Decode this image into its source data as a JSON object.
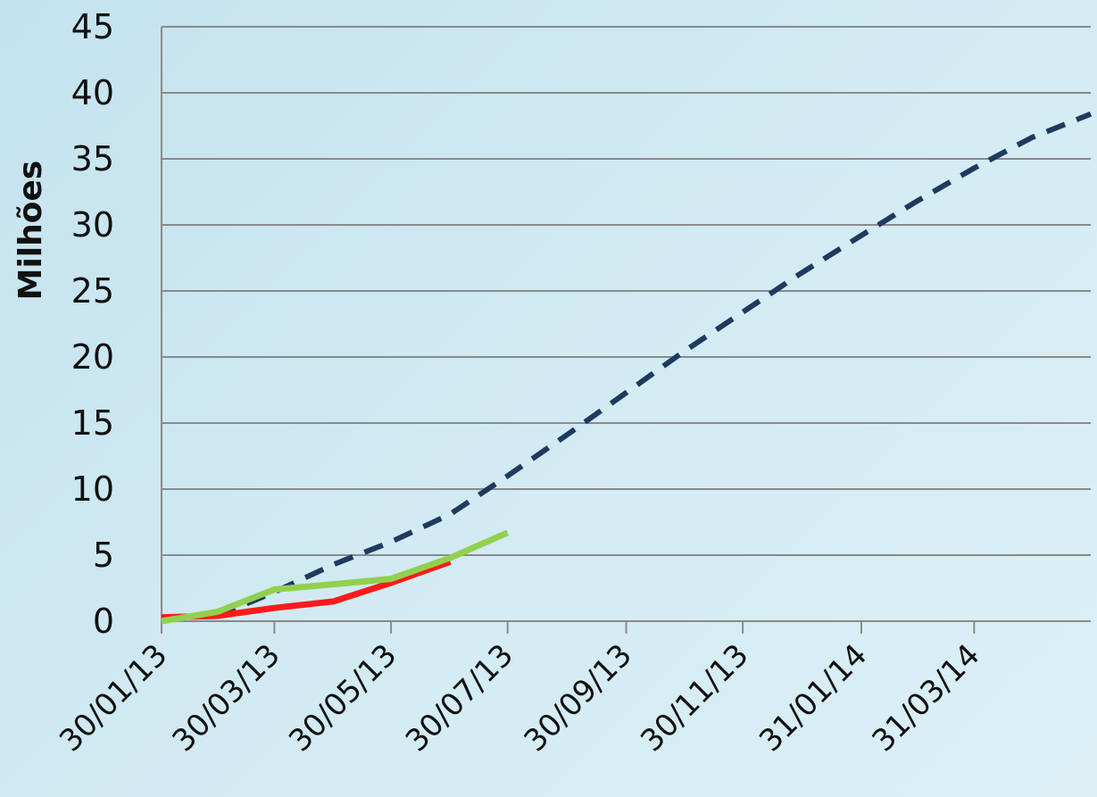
{
  "chart_data": {
    "type": "line",
    "title": "",
    "xlabel": "",
    "ylabel": "Milhões",
    "ylim": [
      0,
      45
    ],
    "yticks": [
      0,
      5,
      10,
      15,
      20,
      25,
      30,
      35,
      40,
      45
    ],
    "xlim": [
      "2013-01-30",
      "2014-05-31"
    ],
    "xtick_labels": [
      "30/01/13",
      "30/03/13",
      "30/05/13",
      "30/07/13",
      "30/09/13",
      "30/11/13",
      "31/01/14",
      "31/03/14"
    ],
    "xtick_dates": [
      "2013-01-30",
      "2013-03-30",
      "2013-05-30",
      "2013-07-30",
      "2013-09-30",
      "2013-11-30",
      "2014-01-31",
      "2014-03-31"
    ],
    "grid": {
      "horizontal": true,
      "vertical": false
    },
    "legend": "none",
    "series": [
      {
        "color": "#1f3a5f",
        "style": "dashed",
        "points": [
          [
            "2013-02-28",
            0.4
          ],
          [
            "2013-03-30",
            2.2
          ],
          [
            "2013-04-30",
            4.3
          ],
          [
            "2013-05-30",
            6.0
          ],
          [
            "2013-06-30",
            8.1
          ],
          [
            "2013-07-30",
            11.0
          ],
          [
            "2013-08-30",
            14.1
          ],
          [
            "2013-09-30",
            17.3
          ],
          [
            "2013-10-30",
            20.4
          ],
          [
            "2013-11-30",
            23.4
          ],
          [
            "2013-12-30",
            26.3
          ],
          [
            "2014-01-31",
            29.2
          ],
          [
            "2014-02-28",
            31.7
          ],
          [
            "2014-03-31",
            34.3
          ],
          [
            "2014-04-30",
            36.6
          ],
          [
            "2014-05-31",
            38.4
          ]
        ]
      },
      {
        "color": "#ff1a1a",
        "style": "solid",
        "points": [
          [
            "2013-01-30",
            0.3
          ],
          [
            "2013-02-28",
            0.4
          ],
          [
            "2013-03-30",
            1.0
          ],
          [
            "2013-04-30",
            1.5
          ],
          [
            "2013-05-30",
            2.9
          ],
          [
            "2013-06-30",
            4.5
          ]
        ]
      },
      {
        "color": "#92d050",
        "style": "solid",
        "points": [
          [
            "2013-01-30",
            0.0
          ],
          [
            "2013-02-28",
            0.7
          ],
          [
            "2013-03-30",
            2.4
          ],
          [
            "2013-04-30",
            2.8
          ],
          [
            "2013-05-30",
            3.2
          ],
          [
            "2013-06-30",
            4.8
          ],
          [
            "2013-07-30",
            6.7
          ]
        ]
      }
    ]
  }
}
